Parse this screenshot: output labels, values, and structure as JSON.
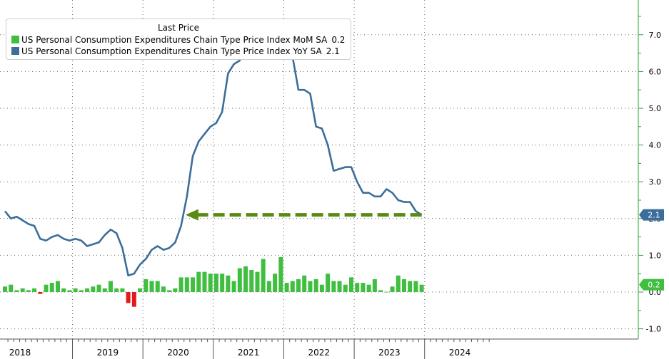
{
  "colors": {
    "mom": "#3fbe3f",
    "mom_negative": "#e11b1b",
    "yoy": "#3b6e9a",
    "axis": "#29a329",
    "arrow": "#5a8a14",
    "badge_yoy": "#3b6e9a",
    "badge_mom": "#3fbe3f"
  },
  "legend": {
    "title": "Last Price",
    "mom_label": "US Personal Consumption Expenditures Chain Type Price Index MoM SA",
    "mom_value": "0.2",
    "yoy_label": "US Personal Consumption Expenditures Chain Type Price Index YoY SA",
    "yoy_value": "2.1"
  },
  "chart_data": {
    "type": "bar+line",
    "title": "",
    "xlabel": "",
    "ylabel": "",
    "ylim": [
      -1,
      8
    ],
    "yticks": [
      -1,
      0,
      1,
      2,
      3,
      4,
      5,
      6,
      7
    ],
    "ytick_labels": [
      "-1.0",
      "0.0",
      "1.0",
      "2.0",
      "3.0",
      "4.0",
      "5.0",
      "6.0",
      "7.0"
    ],
    "x_start": "2018-01",
    "years": [
      "2018",
      "2019",
      "2020",
      "2021",
      "2022",
      "2023",
      "2024"
    ],
    "grid": true,
    "legend_position": "top-left",
    "series": [
      {
        "name": "US Personal Consumption Expenditures Chain Type Price Index YoY SA",
        "type": "line",
        "values": [
          2.2,
          2.0,
          2.05,
          1.95,
          1.85,
          1.8,
          1.45,
          1.4,
          1.5,
          1.55,
          1.45,
          1.4,
          1.45,
          1.4,
          1.25,
          1.3,
          1.35,
          1.55,
          1.7,
          1.6,
          1.2,
          0.45,
          0.5,
          0.75,
          0.9,
          1.15,
          1.25,
          1.15,
          1.2,
          1.35,
          1.8,
          2.6,
          3.7,
          4.1,
          4.3,
          4.5,
          4.6,
          4.9,
          5.95,
          6.2,
          6.3,
          6.7,
          6.95,
          6.7,
          6.8,
          7.25,
          6.75,
          6.7,
          6.7,
          6.4,
          5.5,
          5.5,
          5.4,
          4.5,
          4.45,
          4.0,
          3.3,
          3.35,
          3.4,
          3.4,
          3.0,
          2.7,
          2.7,
          2.6,
          2.6,
          2.8,
          2.7,
          2.5,
          2.45,
          2.45,
          2.2,
          2.1
        ]
      },
      {
        "name": "US Personal Consumption Expenditures Chain Type Price Index MoM SA",
        "type": "bar",
        "values": [
          0.15,
          0.2,
          0.05,
          0.1,
          0.05,
          0.1,
          -0.05,
          0.2,
          0.25,
          0.3,
          0.1,
          0.05,
          0.1,
          0.05,
          0.1,
          0.15,
          0.2,
          0.1,
          0.3,
          0.1,
          0.1,
          -0.3,
          -0.4,
          0.1,
          0.35,
          0.3,
          0.3,
          0.15,
          0.05,
          0.1,
          0.4,
          0.4,
          0.4,
          0.55,
          0.55,
          0.5,
          0.5,
          0.5,
          0.45,
          0.3,
          0.65,
          0.7,
          0.6,
          0.55,
          0.9,
          0.3,
          0.5,
          0.95,
          0.25,
          0.3,
          0.35,
          0.45,
          0.3,
          0.35,
          0.2,
          0.5,
          0.3,
          0.3,
          0.2,
          0.4,
          0.25,
          0.25,
          0.2,
          0.35,
          0.05,
          0.0,
          0.15,
          0.45,
          0.35,
          0.3,
          0.3,
          0.2
        ]
      }
    ],
    "target_arrow": {
      "from_index": 71,
      "to_index": 31,
      "value": 2.1
    },
    "badges": [
      {
        "value": 2.1,
        "label": "2.1"
      },
      {
        "value": 0.2,
        "label": "0.2"
      }
    ]
  }
}
